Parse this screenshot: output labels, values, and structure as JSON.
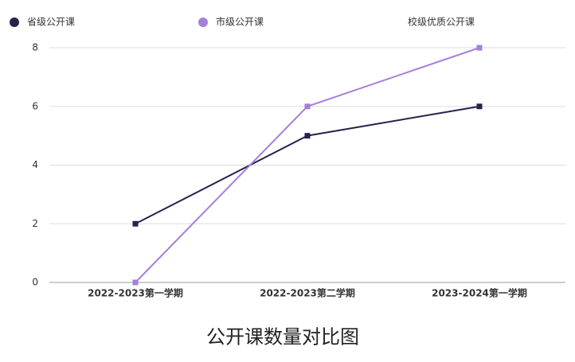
{
  "chart_data": {
    "type": "line",
    "title": "公开课数量对比图",
    "categories": [
      "2022-2023第一学期",
      "2022-2023第二学期",
      "2023-2024第一学期"
    ],
    "series": [
      {
        "name": "省级公开课",
        "color": "#272150",
        "values": [
          2,
          5,
          6
        ]
      },
      {
        "name": "市级公开课",
        "color": "#a57fda",
        "values": [
          0,
          6,
          8
        ]
      },
      {
        "name": "校级优质公开课",
        "values": [
          null,
          null,
          null
        ]
      }
    ],
    "ylim": [
      0,
      8
    ],
    "yticks": [
      0,
      2,
      4,
      6,
      8
    ],
    "grid": true,
    "legend": "top"
  }
}
